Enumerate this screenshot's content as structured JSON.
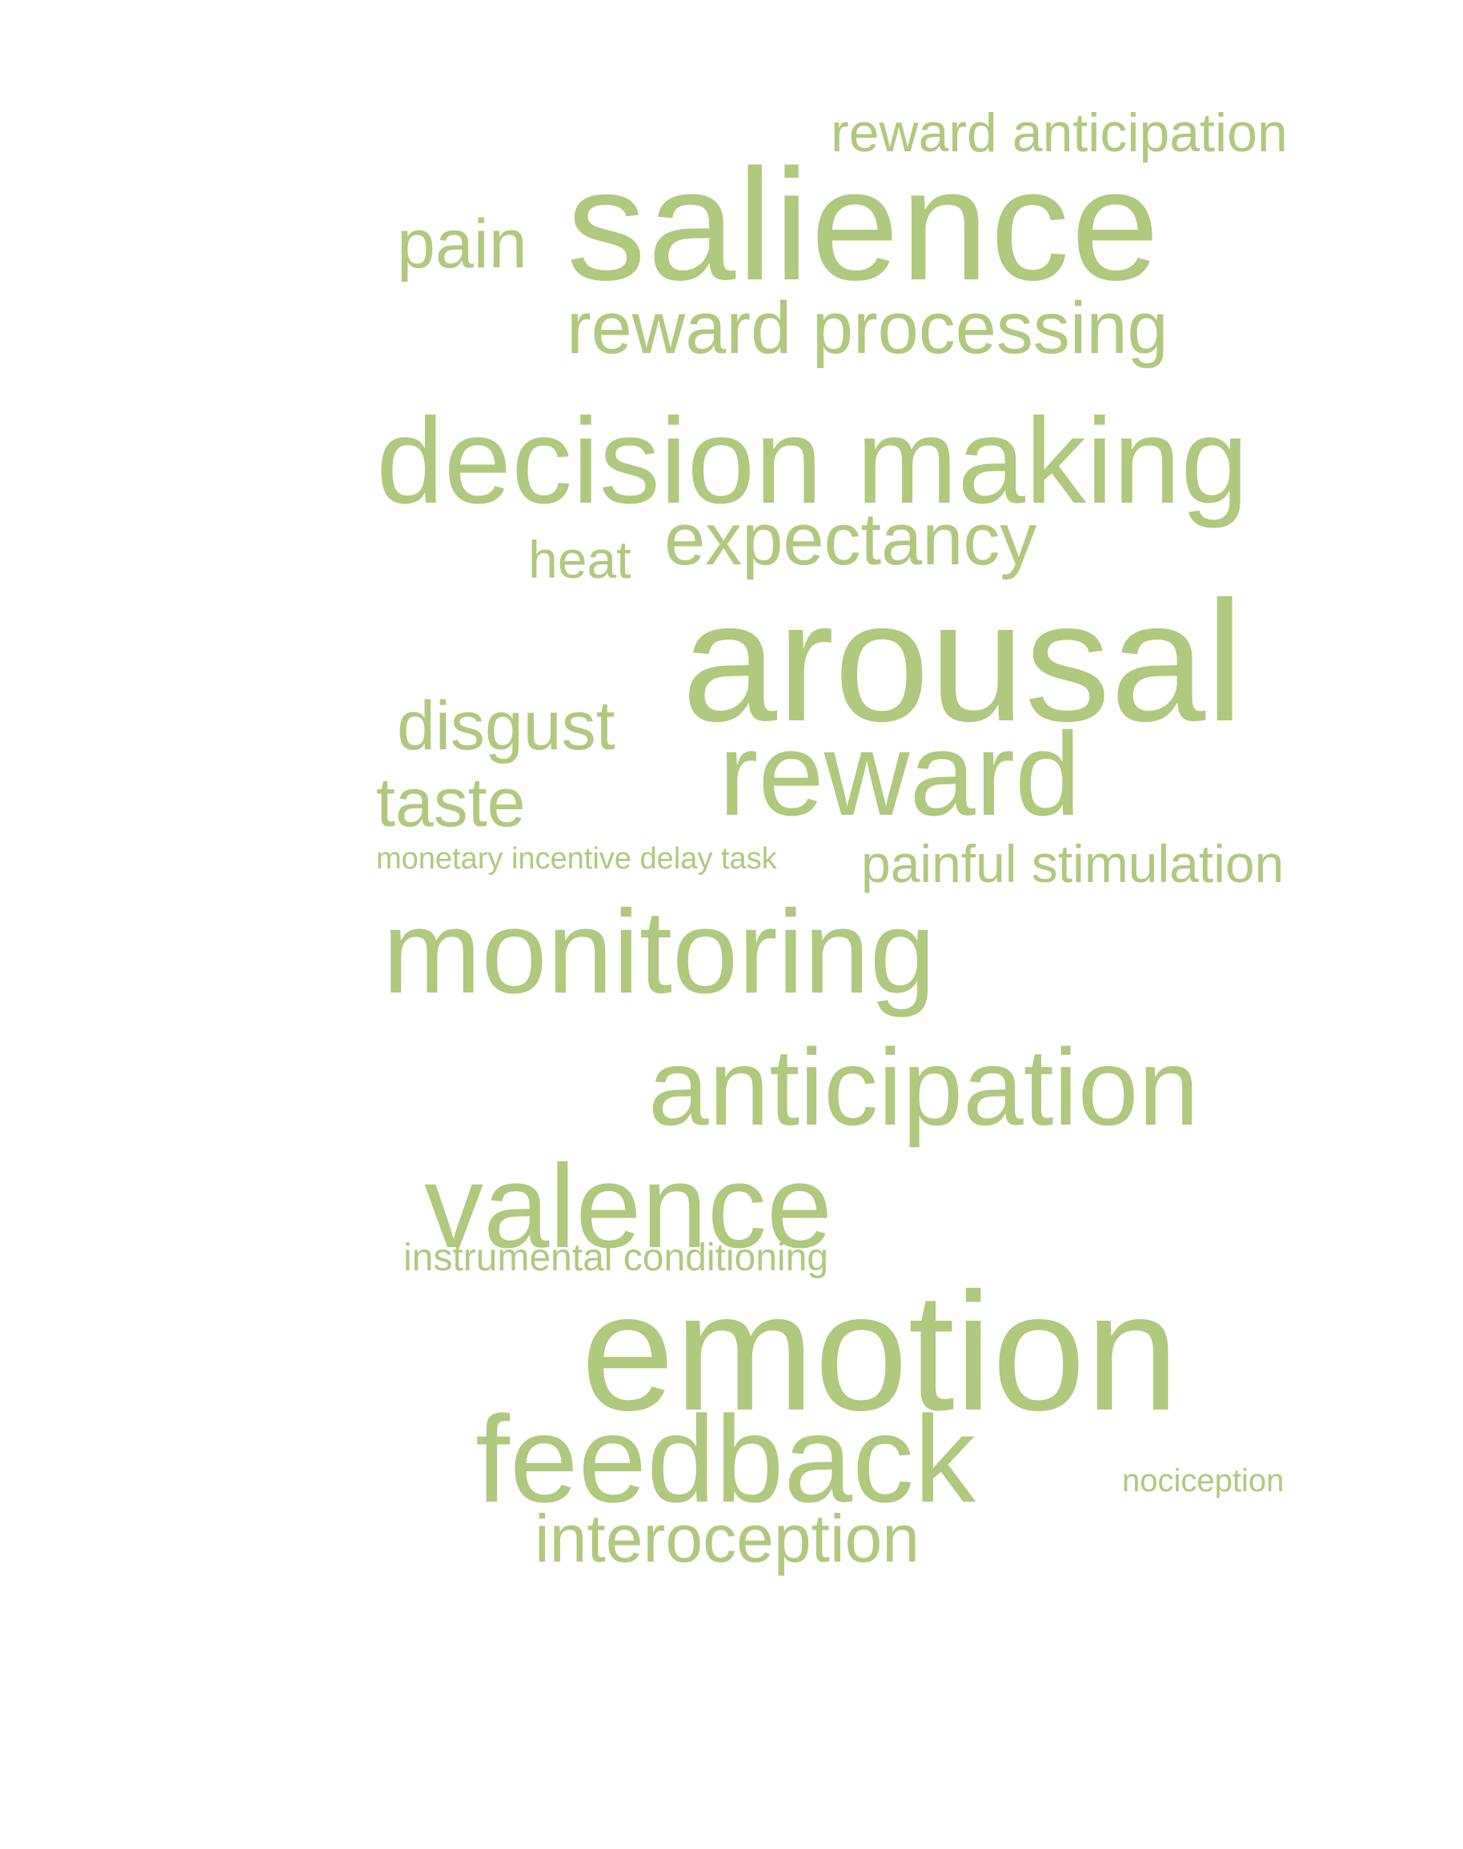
{
  "theme": {
    "word_color": "#b0c97e",
    "background": "#ffffff"
  },
  "words": {
    "reward_anticipation": "reward anticipation",
    "salience": "salience",
    "pain": "pain",
    "reward_processing": "reward processing",
    "decision_making": "decision making",
    "heat": "heat",
    "expectancy": "expectancy",
    "arousal": "arousal",
    "disgust": "disgust",
    "reward": "reward",
    "taste": "taste",
    "monetary_incentive_delay_task": "monetary incentive delay task",
    "painful_stimulation": "painful stimulation",
    "monitoring": "monitoring",
    "anticipation": "anticipation",
    "valence": "valence",
    "instrumental_conditioning": "instrumental conditioning",
    "emotion": "emotion",
    "feedback": "feedback",
    "nociception": "nociception",
    "interoception": "interoception"
  }
}
